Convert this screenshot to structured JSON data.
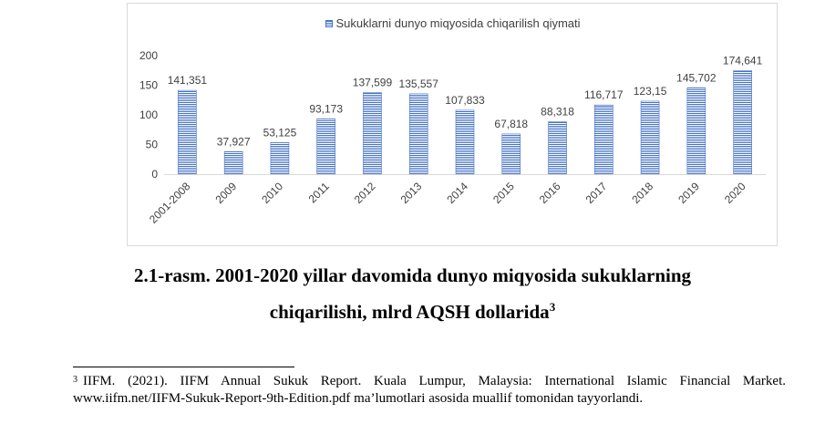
{
  "chart_data": {
    "type": "bar",
    "title": "",
    "legend": {
      "label": "Sukuklarni dunyo miqyosida chiqarilish qiymati",
      "position": "top"
    },
    "categories": [
      "2001-2008",
      "2009",
      "2010",
      "2011",
      "2012",
      "2013",
      "2014",
      "2015",
      "2016",
      "2017",
      "2018",
      "2019",
      "2020"
    ],
    "values": [
      141.351,
      37.927,
      53.125,
      93.173,
      137.599,
      135.557,
      107.833,
      67.818,
      88.318,
      116.717,
      123.15,
      145.702,
      174.641
    ],
    "data_labels": [
      "141,351",
      "37,927",
      "53,125",
      "93,173",
      "137,599",
      "135,557",
      "107,833",
      "67,818",
      "88,318",
      "116,717",
      "123,15",
      "145,702",
      "174,641"
    ],
    "y_ticks": [
      "0",
      "50",
      "100",
      "150",
      "200"
    ],
    "ylim": [
      0,
      200
    ],
    "xlabel": "",
    "ylabel": "",
    "grid": false,
    "colors": {
      "bar": "#4472c4",
      "text": "#404040",
      "axis": "#d9d9d9"
    }
  },
  "caption": {
    "line1": "2.1-rasm. 2001-2020 yillar davomida dunyo miqyosida sukuklarning",
    "line2": "chiqarilishi, mlrd AQSH dollarida",
    "footnote_ref": "3"
  },
  "footnote": {
    "mark": "3",
    "text": "IIFM. (2021). IIFM Annual Sukuk Report. Kuala Lumpur, Malaysia: International Islamic Financial Market. www.iifm.net/IIFM-Sukuk-Report-9th-Edition.pdf ma’lumotlari asosida muallif tomonidan tayyorlandi."
  }
}
